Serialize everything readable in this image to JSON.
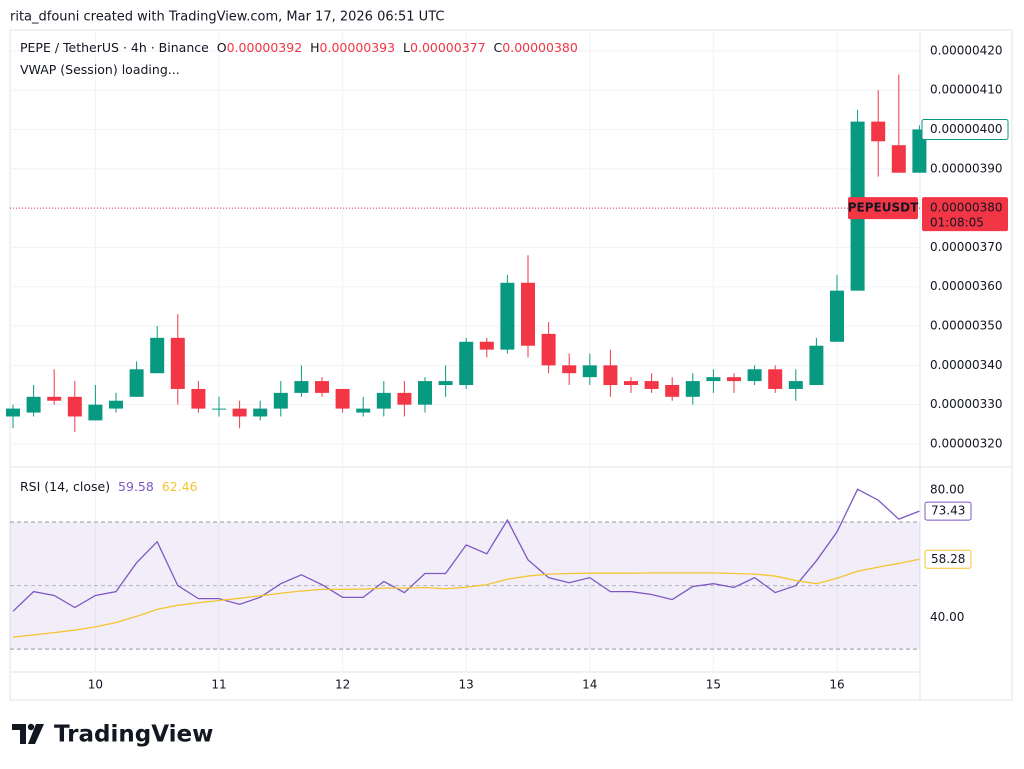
{
  "credit": "rita_dfouni created with TradingView.com, Mar 17, 2026 06:51 UTC",
  "brand": "TradingView",
  "chart_data": [
    {
      "type": "candlestick",
      "title": "PEPE / TetherUS · 4h · Binance",
      "ohlc_legend": [
        {
          "label": "O",
          "value": "0.00000392"
        },
        {
          "label": "H",
          "value": "0.00000393"
        },
        {
          "label": "L",
          "value": "0.00000377"
        },
        {
          "label": "C",
          "value": "0.00000380"
        }
      ],
      "indicator_label": "VWAP (Session) loading...",
      "categories": [
        null,
        null,
        null,
        null,
        "10",
        null,
        null,
        null,
        null,
        null,
        "11",
        null,
        null,
        null,
        null,
        null,
        "12",
        null,
        null,
        null,
        null,
        null,
        "13",
        null,
        null,
        null,
        null,
        null,
        "14",
        null,
        null,
        null,
        null,
        null,
        "15",
        null,
        null,
        null,
        null,
        null,
        "16",
        null,
        null,
        null,
        null
      ],
      "open": [
        3.27e-06,
        3.28e-06,
        3.32e-06,
        3.32e-06,
        3.26e-06,
        3.29e-06,
        3.32e-06,
        3.38e-06,
        3.47e-06,
        3.34e-06,
        3.29e-06,
        3.29e-06,
        3.27e-06,
        3.29e-06,
        3.33e-06,
        3.36e-06,
        3.34e-06,
        3.28e-06,
        3.29e-06,
        3.33e-06,
        3.3e-06,
        3.35e-06,
        3.35e-06,
        3.46e-06,
        3.44e-06,
        3.61e-06,
        3.48e-06,
        3.4e-06,
        3.37e-06,
        3.4e-06,
        3.36e-06,
        3.36e-06,
        3.35e-06,
        3.32e-06,
        3.36e-06,
        3.37e-06,
        3.36e-06,
        3.39e-06,
        3.34e-06,
        3.35e-06,
        3.46e-06,
        3.59e-06,
        4.02e-06,
        3.96e-06,
        3.89e-06
      ],
      "high": [
        3.3e-06,
        3.35e-06,
        3.39e-06,
        3.36e-06,
        3.35e-06,
        3.33e-06,
        3.41e-06,
        3.5e-06,
        3.53e-06,
        3.36e-06,
        3.32e-06,
        3.31e-06,
        3.31e-06,
        3.36e-06,
        3.4e-06,
        3.37e-06,
        3.34e-06,
        3.32e-06,
        3.36e-06,
        3.36e-06,
        3.37e-06,
        3.4e-06,
        3.47e-06,
        3.47e-06,
        3.63e-06,
        3.68e-06,
        3.51e-06,
        3.43e-06,
        3.43e-06,
        3.44e-06,
        3.37e-06,
        3.38e-06,
        3.37e-06,
        3.38e-06,
        3.39e-06,
        3.38e-06,
        3.4e-06,
        3.4e-06,
        3.39e-06,
        3.47e-06,
        3.63e-06,
        4.05e-06,
        4.1e-06,
        4.14e-06,
        4.01e-06
      ],
      "low": [
        3.24e-06,
        3.27e-06,
        3.3e-06,
        3.23e-06,
        3.26e-06,
        3.28e-06,
        3.32e-06,
        3.38e-06,
        3.3e-06,
        3.28e-06,
        3.27e-06,
        3.24e-06,
        3.26e-06,
        3.27e-06,
        3.32e-06,
        3.32e-06,
        3.28e-06,
        3.27e-06,
        3.27e-06,
        3.27e-06,
        3.28e-06,
        3.32e-06,
        3.34e-06,
        3.42e-06,
        3.43e-06,
        3.42e-06,
        3.38e-06,
        3.35e-06,
        3.35e-06,
        3.32e-06,
        3.33e-06,
        3.33e-06,
        3.31e-06,
        3.3e-06,
        3.33e-06,
        3.33e-06,
        3.35e-06,
        3.33e-06,
        3.31e-06,
        3.35e-06,
        3.46e-06,
        3.59e-06,
        3.88e-06,
        3.89e-06,
        3.89e-06
      ],
      "close": [
        3.29e-06,
        3.32e-06,
        3.31e-06,
        3.27e-06,
        3.3e-06,
        3.31e-06,
        3.39e-06,
        3.47e-06,
        3.34e-06,
        3.29e-06,
        3.29e-06,
        3.27e-06,
        3.29e-06,
        3.33e-06,
        3.36e-06,
        3.33e-06,
        3.29e-06,
        3.29e-06,
        3.33e-06,
        3.3e-06,
        3.36e-06,
        3.36e-06,
        3.46e-06,
        3.44e-06,
        3.61e-06,
        3.45e-06,
        3.4e-06,
        3.38e-06,
        3.4e-06,
        3.35e-06,
        3.35e-06,
        3.34e-06,
        3.32e-06,
        3.36e-06,
        3.37e-06,
        3.36e-06,
        3.39e-06,
        3.34e-06,
        3.36e-06,
        3.45e-06,
        3.59e-06,
        4.02e-06,
        3.97e-06,
        3.89e-06,
        4e-06
      ],
      "up_color": "#089981",
      "down_color": "#f23645",
      "ylim": [
        3.144e-06,
        4.253e-06
      ],
      "yticks": [
        {
          "value": 3.2e-06,
          "label": "0.00000320"
        },
        {
          "value": 3.3e-06,
          "label": "0.00000330"
        },
        {
          "value": 3.4e-06,
          "label": "0.00000340"
        },
        {
          "value": 3.5e-06,
          "label": "0.00000350"
        },
        {
          "value": 3.6e-06,
          "label": "0.00000360"
        },
        {
          "value": 3.7e-06,
          "label": "0.00000370"
        },
        {
          "value": 3.8e-06,
          "label": "0.00000380"
        },
        {
          "value": 3.9e-06,
          "label": "0.00000390"
        },
        {
          "value": 4e-06,
          "label": "0.00000400"
        },
        {
          "value": 4.1e-06,
          "label": "0.00000410"
        },
        {
          "value": 4.2e-06,
          "label": "0.00000420"
        }
      ],
      "grid": true,
      "last_price": {
        "value": 4e-06,
        "label": "0.00000400"
      },
      "price_line": {
        "symbol": "PEPEUSDT",
        "value": 3.8e-06,
        "label": "0.00000380",
        "countdown": "01:08:05"
      }
    },
    {
      "type": "line",
      "title": "RSI (14, close)",
      "series": [
        {
          "color": "#7e57c2",
          "legend_value": 59.58,
          "last_label": "73.43",
          "values": [
            41.9,
            48.1,
            46.9,
            43.1,
            46.9,
            48.1,
            57.2,
            63.8,
            50,
            45.9,
            45.9,
            44.1,
            46.3,
            50.6,
            53.4,
            50.3,
            46.3,
            46.3,
            51.3,
            47.8,
            53.8,
            53.8,
            62.8,
            60,
            70.6,
            58.1,
            52.5,
            50.9,
            52.5,
            48.1,
            48.1,
            47.2,
            45.6,
            49.7,
            50.6,
            49.4,
            52.5,
            47.8,
            50,
            57.8,
            66.9,
            80.3,
            76.9,
            70.9,
            73.43
          ]
        },
        {
          "color": "#f5c431",
          "legend_value": 62.46,
          "last_label": "58.28",
          "values": [
            33.8,
            34.5,
            35.2,
            36,
            37,
            38.4,
            40.3,
            42.5,
            43.8,
            44.6,
            45.3,
            46,
            46.8,
            47.6,
            48.3,
            48.8,
            48.8,
            48.9,
            49.2,
            49.2,
            49.4,
            49,
            49.5,
            50.3,
            52,
            53,
            53.6,
            53.8,
            53.9,
            53.9,
            53.9,
            54,
            54,
            54,
            54,
            53.8,
            53.6,
            53,
            51.6,
            50.6,
            52.3,
            54.5,
            55.8,
            57,
            58.28
          ]
        }
      ],
      "band": [
        30,
        70
      ],
      "midline": 50,
      "ylim": [
        14,
        87
      ],
      "yticks": [
        {
          "value": 40,
          "label": "40.00"
        },
        {
          "value": 80,
          "label": "80.00"
        }
      ]
    }
  ]
}
